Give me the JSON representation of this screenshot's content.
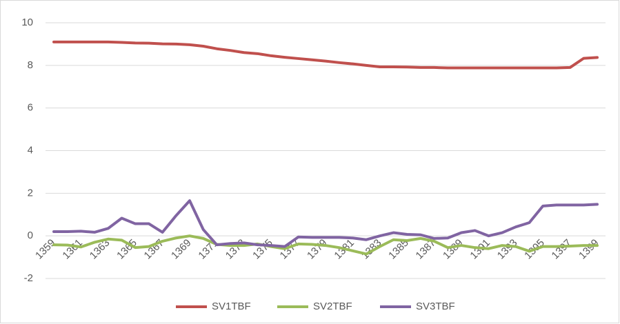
{
  "chart_data": {
    "type": "line",
    "categories": [
      "1359",
      null,
      "1361",
      null,
      "1363",
      null,
      "1365",
      null,
      "1367",
      null,
      "1369",
      null,
      "1371",
      null,
      "1373",
      null,
      "1375",
      null,
      "1377",
      null,
      "1379",
      null,
      "1381",
      null,
      "1383",
      null,
      "1385",
      null,
      "1387",
      null,
      "1389",
      null,
      "1391",
      null,
      "1393",
      null,
      "1395",
      null,
      "1397",
      null,
      "1399"
    ],
    "series": [
      {
        "name": "SV1TBF",
        "color": "#c0504d",
        "values": [
          9.1,
          9.1,
          9.1,
          9.1,
          9.1,
          9.08,
          9.05,
          9.04,
          9.01,
          9.0,
          8.97,
          8.9,
          8.78,
          8.7,
          8.6,
          8.55,
          8.45,
          8.38,
          8.32,
          8.26,
          8.2,
          8.13,
          8.07,
          8.0,
          7.93,
          7.93,
          7.92,
          7.9,
          7.9,
          7.88,
          7.88,
          7.88,
          7.88,
          7.88,
          7.88,
          7.88,
          7.88,
          7.88,
          7.9,
          8.33,
          8.37
        ]
      },
      {
        "name": "SV2TBF",
        "color": "#9bbb59",
        "values": [
          -0.42,
          -0.43,
          -0.52,
          -0.3,
          -0.15,
          -0.2,
          -0.55,
          -0.5,
          -0.25,
          -0.1,
          0.0,
          -0.12,
          -0.4,
          -0.45,
          -0.45,
          -0.38,
          -0.5,
          -0.6,
          -0.38,
          -0.4,
          -0.45,
          -0.55,
          -0.7,
          -0.85,
          -0.5,
          -0.18,
          -0.22,
          -0.12,
          -0.25,
          -0.55,
          -0.45,
          -0.55,
          -0.6,
          -0.45,
          -0.5,
          -0.72,
          -0.5,
          -0.5,
          -0.48,
          -0.45,
          -0.45
        ]
      },
      {
        "name": "SV3TBF",
        "color": "#8064a2",
        "values": [
          0.2,
          0.2,
          0.22,
          0.17,
          0.35,
          0.83,
          0.57,
          0.57,
          0.17,
          0.95,
          1.65,
          0.3,
          -0.42,
          -0.36,
          -0.33,
          -0.42,
          -0.45,
          -0.5,
          -0.05,
          -0.07,
          -0.07,
          -0.07,
          -0.1,
          -0.18,
          0.0,
          0.15,
          0.07,
          0.05,
          -0.12,
          -0.1,
          0.15,
          0.25,
          0.0,
          0.15,
          0.42,
          0.62,
          1.4,
          1.45,
          1.45,
          1.45,
          1.48
        ]
      }
    ],
    "ylim": [
      -2,
      10
    ],
    "yticks": [
      -2,
      0,
      2,
      4,
      6,
      8,
      10
    ],
    "grid": true,
    "legend": "bottom"
  }
}
